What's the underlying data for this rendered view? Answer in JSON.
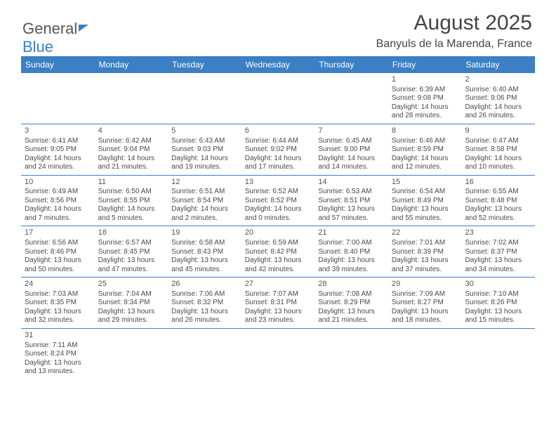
{
  "logo": {
    "text_gray": "General",
    "text_blue": "Blue"
  },
  "header": {
    "month_year": "August 2025",
    "location": "Banyuls de la Marenda, France"
  },
  "colors": {
    "header_bg": "#3b7fc4",
    "header_text": "#ffffff",
    "border": "#3b7fc4",
    "cell_text": "#4a4a4a",
    "title_text": "#444444"
  },
  "days_of_week": [
    "Sunday",
    "Monday",
    "Tuesday",
    "Wednesday",
    "Thursday",
    "Friday",
    "Saturday"
  ],
  "weeks": [
    [
      null,
      null,
      null,
      null,
      null,
      {
        "n": "1",
        "sr": "6:39 AM",
        "ss": "9:08 PM",
        "dl": "14 hours and 28 minutes."
      },
      {
        "n": "2",
        "sr": "6:40 AM",
        "ss": "9:06 PM",
        "dl": "14 hours and 26 minutes."
      }
    ],
    [
      {
        "n": "3",
        "sr": "6:41 AM",
        "ss": "9:05 PM",
        "dl": "14 hours and 24 minutes."
      },
      {
        "n": "4",
        "sr": "6:42 AM",
        "ss": "9:04 PM",
        "dl": "14 hours and 21 minutes."
      },
      {
        "n": "5",
        "sr": "6:43 AM",
        "ss": "9:03 PM",
        "dl": "14 hours and 19 minutes."
      },
      {
        "n": "6",
        "sr": "6:44 AM",
        "ss": "9:02 PM",
        "dl": "14 hours and 17 minutes."
      },
      {
        "n": "7",
        "sr": "6:45 AM",
        "ss": "9:00 PM",
        "dl": "14 hours and 14 minutes."
      },
      {
        "n": "8",
        "sr": "6:46 AM",
        "ss": "8:59 PM",
        "dl": "14 hours and 12 minutes."
      },
      {
        "n": "9",
        "sr": "6:47 AM",
        "ss": "8:58 PM",
        "dl": "14 hours and 10 minutes."
      }
    ],
    [
      {
        "n": "10",
        "sr": "6:49 AM",
        "ss": "8:56 PM",
        "dl": "14 hours and 7 minutes."
      },
      {
        "n": "11",
        "sr": "6:50 AM",
        "ss": "8:55 PM",
        "dl": "14 hours and 5 minutes."
      },
      {
        "n": "12",
        "sr": "6:51 AM",
        "ss": "8:54 PM",
        "dl": "14 hours and 2 minutes."
      },
      {
        "n": "13",
        "sr": "6:52 AM",
        "ss": "8:52 PM",
        "dl": "14 hours and 0 minutes."
      },
      {
        "n": "14",
        "sr": "6:53 AM",
        "ss": "8:51 PM",
        "dl": "13 hours and 57 minutes."
      },
      {
        "n": "15",
        "sr": "6:54 AM",
        "ss": "8:49 PM",
        "dl": "13 hours and 55 minutes."
      },
      {
        "n": "16",
        "sr": "6:55 AM",
        "ss": "8:48 PM",
        "dl": "13 hours and 52 minutes."
      }
    ],
    [
      {
        "n": "17",
        "sr": "6:56 AM",
        "ss": "8:46 PM",
        "dl": "13 hours and 50 minutes."
      },
      {
        "n": "18",
        "sr": "6:57 AM",
        "ss": "8:45 PM",
        "dl": "13 hours and 47 minutes."
      },
      {
        "n": "19",
        "sr": "6:58 AM",
        "ss": "8:43 PM",
        "dl": "13 hours and 45 minutes."
      },
      {
        "n": "20",
        "sr": "6:59 AM",
        "ss": "8:42 PM",
        "dl": "13 hours and 42 minutes."
      },
      {
        "n": "21",
        "sr": "7:00 AM",
        "ss": "8:40 PM",
        "dl": "13 hours and 39 minutes."
      },
      {
        "n": "22",
        "sr": "7:01 AM",
        "ss": "8:39 PM",
        "dl": "13 hours and 37 minutes."
      },
      {
        "n": "23",
        "sr": "7:02 AM",
        "ss": "8:37 PM",
        "dl": "13 hours and 34 minutes."
      }
    ],
    [
      {
        "n": "24",
        "sr": "7:03 AM",
        "ss": "8:35 PM",
        "dl": "13 hours and 32 minutes."
      },
      {
        "n": "25",
        "sr": "7:04 AM",
        "ss": "8:34 PM",
        "dl": "13 hours and 29 minutes."
      },
      {
        "n": "26",
        "sr": "7:06 AM",
        "ss": "8:32 PM",
        "dl": "13 hours and 26 minutes."
      },
      {
        "n": "27",
        "sr": "7:07 AM",
        "ss": "8:31 PM",
        "dl": "13 hours and 23 minutes."
      },
      {
        "n": "28",
        "sr": "7:08 AM",
        "ss": "8:29 PM",
        "dl": "13 hours and 21 minutes."
      },
      {
        "n": "29",
        "sr": "7:09 AM",
        "ss": "8:27 PM",
        "dl": "13 hours and 18 minutes."
      },
      {
        "n": "30",
        "sr": "7:10 AM",
        "ss": "8:26 PM",
        "dl": "13 hours and 15 minutes."
      }
    ],
    [
      {
        "n": "31",
        "sr": "7:11 AM",
        "ss": "8:24 PM",
        "dl": "13 hours and 13 minutes."
      },
      null,
      null,
      null,
      null,
      null,
      null
    ]
  ],
  "labels": {
    "sunrise": "Sunrise:",
    "sunset": "Sunset:",
    "daylight": "Daylight:"
  }
}
